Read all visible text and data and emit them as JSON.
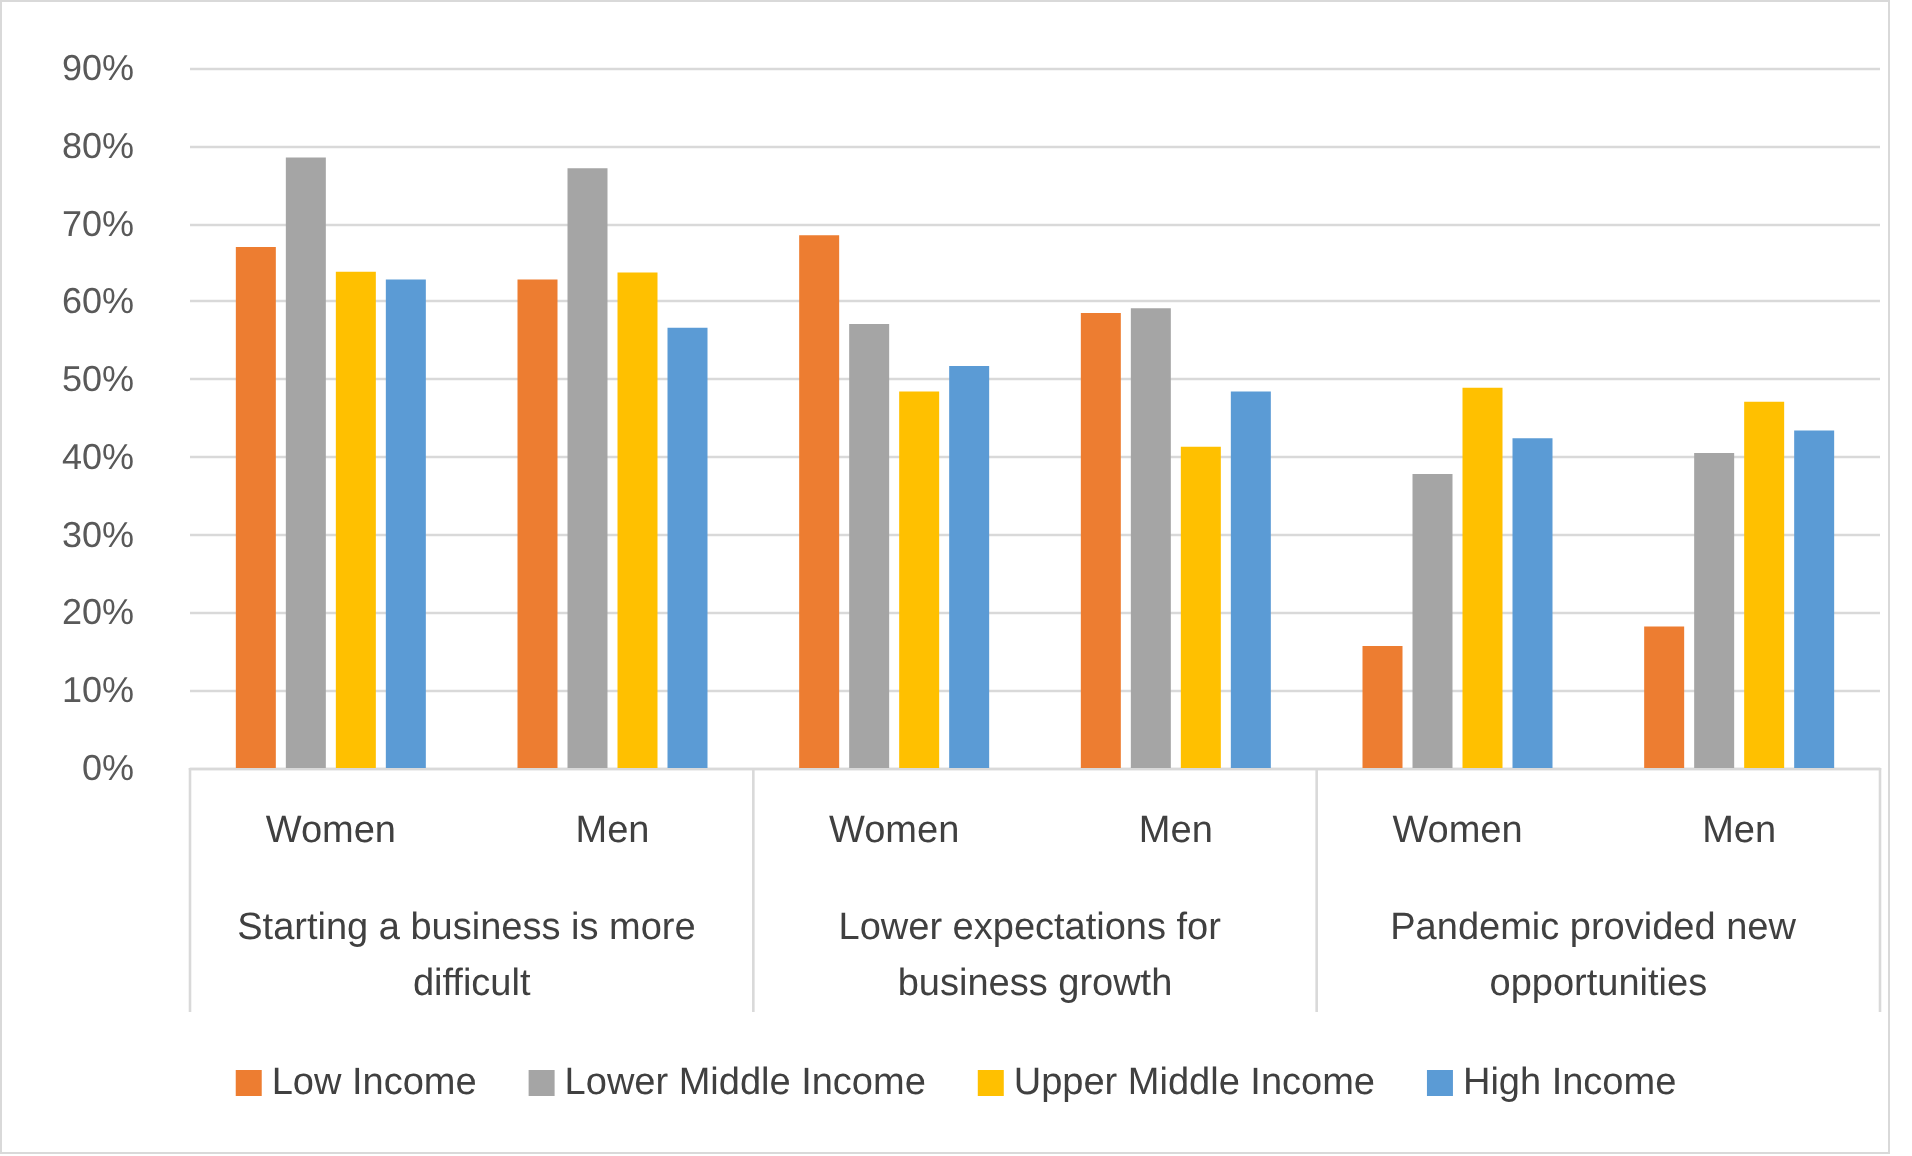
{
  "chart_data": {
    "type": "bar",
    "categories": [
      "Women",
      "Men",
      "Women",
      "Men",
      "Women",
      "Men"
    ],
    "annotations": [
      "Starting a business is more difficult",
      "Lower expectations for business growth",
      "Pandemic provided new opportunities"
    ],
    "series": [
      {
        "name": "Low Income",
        "color": "#ed7d31",
        "values": [
          67.0,
          62.8,
          68.5,
          58.5,
          15.7,
          18.2
        ]
      },
      {
        "name": "Lower Middle Income",
        "color": "#a5a5a5",
        "values": [
          78.5,
          77.1,
          57.1,
          59.1,
          37.8,
          40.5
        ]
      },
      {
        "name": "Upper Middle Income",
        "color": "#ffc000",
        "values": [
          63.8,
          63.7,
          48.4,
          41.3,
          48.9,
          47.1
        ]
      },
      {
        "name": "High Income",
        "color": "#5b9bd5",
        "values": [
          62.8,
          56.6,
          51.7,
          48.4,
          42.4,
          43.4
        ]
      }
    ],
    "ylim": [
      0,
      90
    ],
    "yticks": [
      {
        "value": 0,
        "label": "0%"
      },
      {
        "value": 10,
        "label": "10%"
      },
      {
        "value": 20,
        "label": "20%"
      },
      {
        "value": 30,
        "label": "30%"
      },
      {
        "value": 40,
        "label": "40%"
      },
      {
        "value": 50,
        "label": "50%"
      },
      {
        "value": 60,
        "label": "60%"
      },
      {
        "value": 70,
        "label": "70%"
      },
      {
        "value": 80,
        "label": "80%"
      },
      {
        "value": 90,
        "label": "90%"
      }
    ],
    "grid": "y",
    "legend": "bottom"
  }
}
